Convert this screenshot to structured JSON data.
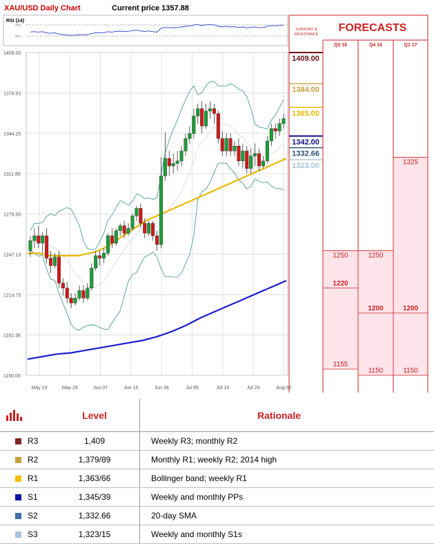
{
  "header": {
    "title": "XAU/USD Daily Chart",
    "price_label": "Current price",
    "price_value": "1357.88"
  },
  "rsi": {
    "label": "RSI (14)",
    "levels": [
      70,
      30
    ],
    "level_labels": [
      "70%",
      "30%"
    ]
  },
  "chart_data": {
    "type": "candlestick",
    "title": "XAU/USD Daily Chart",
    "ylim": [
      1150,
      1409
    ],
    "y_ticks": [
      1409.0,
      1376.63,
      1344.25,
      1311.88,
      1279.5,
      1247.13,
      1214.75,
      1182.38,
      1150.0
    ],
    "y_tick_labels": [
      "1409.00",
      "1376.63",
      "1344.25",
      "1311.88",
      "1279.50",
      "1247.13",
      "1214.75",
      "1182.38",
      "1150.00"
    ],
    "x_tick_labels": [
      "May 19",
      "May 29",
      "Jun 07",
      "Jun 16",
      "Jun 28",
      "Jul 05",
      "Jul 14",
      "Jul 24",
      "Aug 02"
    ],
    "candles": [
      [
        1250,
        1258,
        1245,
        1262
      ],
      [
        1258,
        1262,
        1252,
        1268
      ],
      [
        1262,
        1256,
        1252,
        1270
      ],
      [
        1256,
        1262,
        1248,
        1265
      ],
      [
        1262,
        1244,
        1240,
        1268
      ],
      [
        1244,
        1238,
        1232,
        1250
      ],
      [
        1238,
        1245,
        1236,
        1248
      ],
      [
        1245,
        1224,
        1220,
        1250
      ],
      [
        1224,
        1220,
        1214,
        1228
      ],
      [
        1220,
        1212,
        1208,
        1225
      ],
      [
        1212,
        1208,
        1204,
        1216
      ],
      [
        1208,
        1212,
        1206,
        1216
      ],
      [
        1212,
        1218,
        1210,
        1222
      ],
      [
        1218,
        1212,
        1208,
        1222
      ],
      [
        1212,
        1220,
        1210,
        1224
      ],
      [
        1220,
        1236,
        1218,
        1240
      ],
      [
        1236,
        1246,
        1234,
        1250
      ],
      [
        1246,
        1244,
        1238,
        1250
      ],
      [
        1244,
        1248,
        1240,
        1252
      ],
      [
        1248,
        1262,
        1246,
        1264
      ],
      [
        1262,
        1256,
        1252,
        1268
      ],
      [
        1256,
        1266,
        1254,
        1268
      ],
      [
        1266,
        1270,
        1262,
        1272
      ],
      [
        1270,
        1264,
        1260,
        1274
      ],
      [
        1264,
        1268,
        1262,
        1272
      ],
      [
        1268,
        1278,
        1266,
        1280
      ],
      [
        1278,
        1284,
        1274,
        1286
      ],
      [
        1284,
        1272,
        1268,
        1288
      ],
      [
        1272,
        1264,
        1260,
        1276
      ],
      [
        1264,
        1272,
        1262,
        1274
      ],
      [
        1272,
        1262,
        1258,
        1274
      ],
      [
        1262,
        1255,
        1250,
        1266
      ],
      [
        1255,
        1310,
        1252,
        1325
      ],
      [
        1310,
        1324,
        1306,
        1345
      ],
      [
        1324,
        1318,
        1310,
        1330
      ],
      [
        1318,
        1320,
        1312,
        1328
      ],
      [
        1320,
        1322,
        1314,
        1330
      ],
      [
        1322,
        1330,
        1318,
        1334
      ],
      [
        1330,
        1340,
        1326,
        1344
      ],
      [
        1340,
        1344,
        1336,
        1350
      ],
      [
        1344,
        1358,
        1340,
        1364
      ],
      [
        1358,
        1364,
        1352,
        1368
      ],
      [
        1364,
        1350,
        1344,
        1370
      ],
      [
        1350,
        1362,
        1348,
        1368
      ],
      [
        1362,
        1364,
        1356,
        1370
      ],
      [
        1364,
        1360,
        1352,
        1368
      ],
      [
        1360,
        1340,
        1336,
        1362
      ],
      [
        1340,
        1330,
        1326,
        1346
      ],
      [
        1330,
        1340,
        1326,
        1344
      ],
      [
        1340,
        1330,
        1326,
        1344
      ],
      [
        1330,
        1334,
        1326,
        1338
      ],
      [
        1334,
        1322,
        1318,
        1340
      ],
      [
        1322,
        1330,
        1316,
        1336
      ],
      [
        1330,
        1316,
        1312,
        1334
      ],
      [
        1316,
        1326,
        1312,
        1332
      ],
      [
        1326,
        1328,
        1318,
        1336
      ],
      [
        1328,
        1318,
        1314,
        1332
      ],
      [
        1318,
        1322,
        1316,
        1326
      ],
      [
        1322,
        1338,
        1320,
        1342
      ],
      [
        1338,
        1348,
        1334,
        1352
      ],
      [
        1348,
        1346,
        1340,
        1352
      ],
      [
        1346,
        1352,
        1342,
        1356
      ],
      [
        1352,
        1356,
        1348,
        1360
      ]
    ],
    "series": [
      {
        "name": "",
        "color": "#e8b800",
        "values": [
          1248,
          1248,
          1248,
          1247,
          1246,
          1246,
          1246,
          1246,
          1246,
          1246,
          1247,
          1248,
          1249,
          1251,
          1253,
          1256,
          1259,
          1262,
          1265,
          1268,
          1271,
          1274,
          1276,
          1278,
          1280,
          1282,
          1284,
          1286,
          1288,
          1290,
          1292,
          1294,
          1296,
          1298,
          1300,
          1302,
          1304,
          1306,
          1308,
          1310,
          1312,
          1314,
          1316,
          1318,
          1320,
          1322,
          1324
        ]
      },
      {
        "name": "",
        "color": "#1a1ad0",
        "values": [
          1163,
          1165,
          1167,
          1168,
          1170,
          1172,
          1174,
          1176,
          1178,
          1181,
          1185,
          1190,
          1196,
          1201,
          1206,
          1211,
          1216,
          1221,
          1226
        ]
      }
    ],
    "support_resistance": [
      {
        "label": "1409.00",
        "value": 1409.0,
        "color": "#6b0f1a"
      },
      {
        "label": "1384.00",
        "value": 1384.0,
        "color": "#c8a040"
      },
      {
        "label": "1365.00",
        "value": 1365.0,
        "color": "#e8b800"
      },
      {
        "label": "1342.00",
        "value": 1342.0,
        "color": "#101080"
      },
      {
        "label": "1332.66",
        "value": 1332.66,
        "color": "#2a4f7a"
      },
      {
        "label": "1323.00",
        "value": 1323.0,
        "color": "#a8c4d8"
      }
    ]
  },
  "forecast_panel": {
    "side_title_line1": "SUPPORT &",
    "side_title_line2": "RESISTANCE",
    "title": "FORECASTS",
    "columns": [
      "Q3 16",
      "Q4 16",
      "Q1 17"
    ],
    "values": [
      [
        {
          "label": "1250",
          "value": 1250
        },
        {
          "label": "1220",
          "value": 1220
        },
        {
          "label": "1155",
          "value": 1155
        }
      ],
      [
        {
          "label": "1250",
          "value": 1250
        },
        {
          "label": "1200",
          "value": 1200
        },
        {
          "label": "1150",
          "value": 1150
        }
      ],
      [
        {
          "label": "1325",
          "value": 1325
        },
        {
          "label": "1200",
          "value": 1200
        },
        {
          "label": "1150",
          "value": 1150
        }
      ]
    ]
  },
  "table": {
    "icon": "bar-chart-icon",
    "headers": {
      "level": "Level",
      "rationale": "Rationale"
    },
    "rows": [
      {
        "code": "R3",
        "color": "#7b2a2a",
        "level": "1,409",
        "rationale": "Weekly R3; monthly R2"
      },
      {
        "code": "R2",
        "color": "#c8a040",
        "level": "1,379/89",
        "rationale": "Monthly R1; weekly R2; 2014 high"
      },
      {
        "code": "R1",
        "color": "#f0c000",
        "level": "1,363/66",
        "rationale": "Bollinger band; weekly R1"
      },
      {
        "code": "S1",
        "color": "#1010a0",
        "level": "1,345/39",
        "rationale": "Weekly and monthly PPs"
      },
      {
        "code": "S2",
        "color": "#3f6ea8",
        "level": "1,332.66",
        "rationale": "20-day SMA"
      },
      {
        "code": "S3",
        "color": "#a8c4e0",
        "level": "1,323/15",
        "rationale": "Weekly and monthly S1s"
      }
    ]
  }
}
